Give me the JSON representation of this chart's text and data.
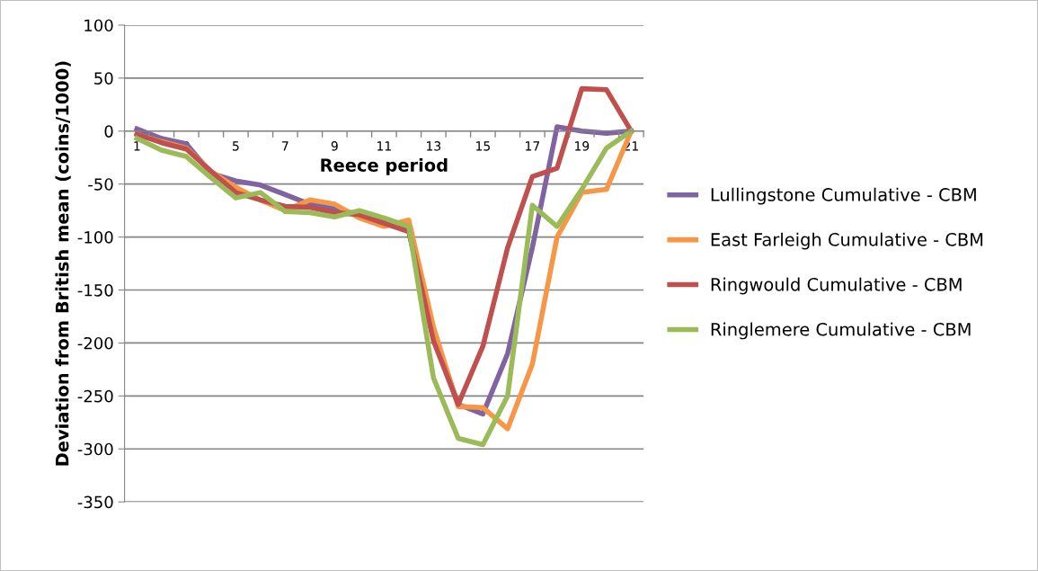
{
  "chart_data": {
    "type": "line",
    "xlabel": "Reece period",
    "ylabel": "Deviation from British mean (coins/1000)",
    "categories": [
      "1",
      null,
      "3",
      null,
      "5",
      null,
      "7",
      null,
      "9",
      null,
      "11",
      null,
      "13",
      null,
      "15",
      null,
      "17",
      null,
      "19",
      null,
      "21"
    ],
    "series": [
      {
        "name": "Lullingstone Cumulative - CBM",
        "color": "#8064a2",
        "values": [
          2,
          -7,
          -12,
          -40,
          -47,
          -51,
          -60,
          -69,
          -73,
          -79,
          -86,
          -93,
          -190,
          -258,
          -267,
          -210,
          -110,
          4,
          0,
          -2,
          0
        ]
      },
      {
        "name": "East Farleigh Cumulative - CBM",
        "color": "#f79646",
        "values": [
          -3,
          -10,
          -16,
          -38,
          -53,
          -65,
          -75,
          -65,
          -69,
          -82,
          -90,
          -84,
          -185,
          -260,
          -261,
          -281,
          -220,
          -100,
          -58,
          -55,
          0
        ]
      },
      {
        "name": "Ringwould Cumulative - CBM",
        "color": "#c0504d",
        "values": [
          -3,
          -11,
          -17,
          -38,
          -58,
          -65,
          -71,
          -72,
          -77,
          -79,
          -87,
          -95,
          -198,
          -258,
          -203,
          -110,
          -43,
          -35,
          40,
          39,
          0
        ]
      },
      {
        "name": "Ringlemere Cumulative - CBM",
        "color": "#9bbb59",
        "values": [
          -7,
          -18,
          -24,
          -44,
          -63,
          -58,
          -76,
          -77,
          -81,
          -75,
          -82,
          -90,
          -233,
          -290,
          -296,
          -250,
          -70,
          -90,
          -55,
          -16,
          0
        ]
      }
    ],
    "ylim": [
      -350,
      100
    ],
    "yticks": [
      -350,
      -300,
      -250,
      -200,
      -150,
      -100,
      -50,
      0,
      50,
      100
    ],
    "grid": "y",
    "legend": "right",
    "marker": "none",
    "line_style": "solid"
  }
}
